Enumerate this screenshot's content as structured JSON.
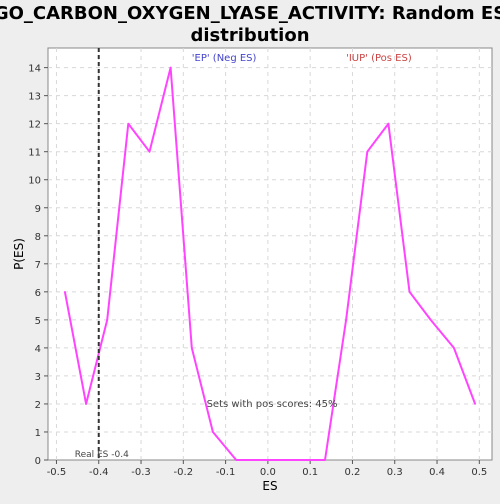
{
  "chart_data": {
    "type": "line",
    "title": "GO_CARBON_OXYGEN_LYASE_ACTIVITY: Random ES distribution",
    "title_lines": [
      "GO_CARBON_OXYGEN_LYASE_ACTIVITY: Random ES",
      "distribution"
    ],
    "xlabel": "ES",
    "ylabel": "P(ES)",
    "xlim": [
      -0.52,
      0.53
    ],
    "ylim": [
      0,
      14.7
    ],
    "x_ticks": [
      -0.5,
      -0.4,
      -0.3,
      -0.2,
      -0.1,
      0.0,
      0.1,
      0.2,
      0.3,
      0.4,
      0.5
    ],
    "x_tick_labels": [
      "-0.5",
      "-0.4",
      "-0.3",
      "-0.2",
      "-0.1",
      "0.0",
      "0.1",
      "0.2",
      "0.3",
      "0.4",
      "0.5"
    ],
    "y_ticks": [
      0,
      1,
      2,
      3,
      4,
      5,
      6,
      7,
      8,
      9,
      10,
      11,
      12,
      13,
      14
    ],
    "y_tick_labels": [
      "0",
      "1",
      "2",
      "3",
      "4",
      "5",
      "6",
      "7",
      "8",
      "9",
      "10",
      "11",
      "12",
      "13",
      "14"
    ],
    "grid": true,
    "series": [
      {
        "color": "#ff44ff",
        "x": [
          -0.48,
          -0.43,
          -0.38,
          -0.33,
          -0.28,
          -0.23,
          -0.18,
          -0.13,
          -0.075,
          -0.025,
          0.035,
          0.085,
          0.135,
          0.185,
          0.235,
          0.285,
          0.335,
          0.385,
          0.44,
          0.49
        ],
        "y": [
          6,
          2,
          5,
          12,
          11,
          14,
          4,
          1,
          0,
          0,
          0,
          0,
          0,
          5,
          11,
          12,
          6,
          5,
          4,
          2
        ]
      }
    ],
    "real_es": {
      "value": -0.4,
      "label": "Real ES -0.4",
      "line_color": "#333333"
    },
    "annotations": [
      {
        "text": "'EP' (Neg ES)",
        "color": "#4444cc",
        "x": -0.18,
        "y": 14.35
      },
      {
        "text": "'IUP' (Pos ES)",
        "color": "#cc4444",
        "x": 0.185,
        "y": 14.35
      },
      {
        "text": "Sets with pos scores: 45%",
        "color": "#444444",
        "x": -0.145,
        "y": 2
      }
    ]
  }
}
